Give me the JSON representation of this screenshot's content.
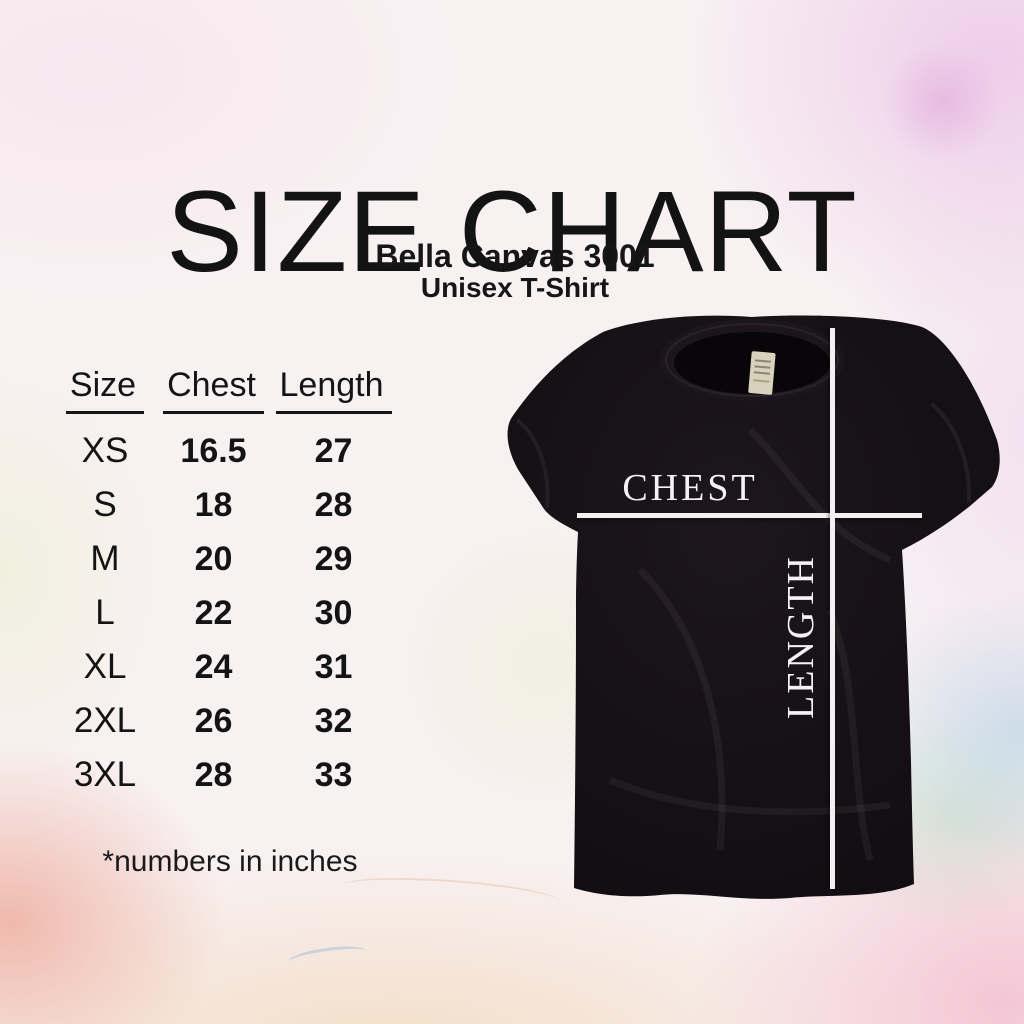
{
  "title": "SIZE CHART",
  "product": {
    "name": "Bella Canvas 3001",
    "type": "Unisex T-Shirt"
  },
  "table": {
    "headers": [
      "Size",
      "Chest",
      "Length"
    ],
    "rows": [
      [
        "XS",
        "16.5",
        "27"
      ],
      [
        "S",
        "18",
        "28"
      ],
      [
        "M",
        "20",
        "29"
      ],
      [
        "L",
        "22",
        "30"
      ],
      [
        "XL",
        "24",
        "31"
      ],
      [
        "2XL",
        "26",
        "32"
      ],
      [
        "3XL",
        "28",
        "33"
      ]
    ]
  },
  "footnote": "*numbers in inches",
  "shirt": {
    "chest_label": "CHEST",
    "length_label": "LENGTH"
  },
  "colors": {
    "text": "#141414",
    "shirt_black": "#161116",
    "measure_line": "#f3f0f2",
    "bg_orchid": "#eccbe8",
    "bg_salmon": "#eeb3a6",
    "bg_peach": "#f3dcc4",
    "bg_pink": "#f4c3d2",
    "bg_blue": "#a8c8e2",
    "bg_yellow_green": "#eef0d8"
  },
  "chart_data": {
    "type": "table",
    "title": "SIZE CHART",
    "subtitle": "Bella Canvas 3001 Unisex T-Shirt",
    "columns": [
      "Size",
      "Chest",
      "Length"
    ],
    "rows": [
      [
        "XS",
        16.5,
        27
      ],
      [
        "S",
        18,
        28
      ],
      [
        "M",
        20,
        29
      ],
      [
        "L",
        22,
        30
      ],
      [
        "XL",
        24,
        31
      ],
      [
        "2XL",
        26,
        32
      ],
      [
        "3XL",
        28,
        33
      ]
    ],
    "units": "inches",
    "notes": "Measurement guide lines labeled CHEST (horizontal) and LENGTH (vertical) drawn over t-shirt photo"
  }
}
